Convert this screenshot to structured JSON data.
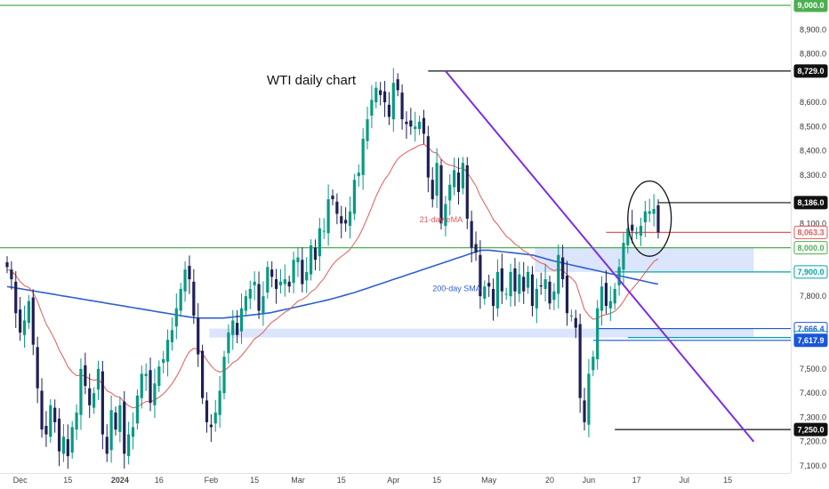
{
  "colors": {
    "up": "#089981",
    "down": "#1f1f57",
    "ema": "#e35a5a",
    "sma": "#2e5fce",
    "trendline": "#7a2ee6",
    "green_level": "#4caf50",
    "teal_level": "#00a5a5",
    "blue_level": "#1a56db",
    "zone": "#dbe5fb",
    "black": "#111111"
  },
  "chart_data": {
    "type": "candlestick",
    "title": "WTI daily chart",
    "ylim": [
      7100,
      9000
    ],
    "y_ticks": [
      "7,100.0",
      "7,200.0",
      "7,300.0",
      "7,400.0",
      "7,500.0",
      "7,600.0",
      "7,700.0",
      "7,800.0",
      "7,900.0",
      "8,000.0",
      "8,100.0",
      "8,200.0",
      "8,300.0",
      "8,400.0",
      "8,500.0",
      "8,600.0",
      "8,700.0",
      "8,800.0",
      "8,900.0",
      "9,000.0"
    ],
    "x_labels": [
      {
        "label": "Dec",
        "i": 3,
        "bold": false
      },
      {
        "label": "15",
        "i": 14,
        "bold": false
      },
      {
        "label": "2024",
        "i": 26,
        "bold": true
      },
      {
        "label": "16",
        "i": 35,
        "bold": false
      },
      {
        "label": "Feb",
        "i": 47,
        "bold": false
      },
      {
        "label": "15",
        "i": 57,
        "bold": false
      },
      {
        "label": "Mar",
        "i": 67,
        "bold": false
      },
      {
        "label": "15",
        "i": 77,
        "bold": false
      },
      {
        "label": "Apr",
        "i": 89,
        "bold": false
      },
      {
        "label": "15",
        "i": 99,
        "bold": false
      },
      {
        "label": "May",
        "i": 111,
        "bold": false
      },
      {
        "label": "20",
        "i": 125,
        "bold": false
      },
      {
        "label": "Jun",
        "i": 134,
        "bold": false
      },
      {
        "label": "17",
        "i": 145,
        "bold": false
      },
      {
        "label": "Jul",
        "i": 156,
        "bold": false
      },
      {
        "label": "15",
        "i": 166,
        "bold": false
      }
    ],
    "closes": [
      7920,
      7870,
      7730,
      7650,
      7700,
      7780,
      7600,
      7420,
      7250,
      7230,
      7350,
      7280,
      7160,
      7220,
      7140,
      7260,
      7320,
      7500,
      7430,
      7350,
      7400,
      7500,
      7230,
      7150,
      7330,
      7250,
      7350,
      7150,
      7230,
      7260,
      7390,
      7480,
      7480,
      7360,
      7440,
      7510,
      7540,
      7620,
      7660,
      7750,
      7830,
      7910,
      7870,
      7720,
      7560,
      7380,
      7280,
      7260,
      7320,
      7410,
      7550,
      7650,
      7700,
      7640,
      7750,
      7800,
      7830,
      7860,
      7740,
      7800,
      7920,
      7880,
      7830,
      7860,
      7870,
      7840,
      7950,
      7960,
      7850,
      7900,
      8010,
      7950,
      8080,
      8070,
      8200,
      8200,
      8140,
      8100,
      8100,
      8150,
      8280,
      8310,
      8450,
      8530,
      8610,
      8660,
      8630,
      8600,
      8540,
      8680,
      8650,
      8530,
      8510,
      8500,
      8500,
      8520,
      8470,
      8290,
      8200,
      8350,
      8100,
      8180,
      8260,
      8320,
      8230,
      8350,
      8120,
      8000,
      7980,
      7800,
      7840,
      7840,
      7760,
      7900,
      7820,
      7810,
      7900,
      7820,
      7890,
      7820,
      7900,
      7760,
      7830,
      7840,
      7870,
      7770,
      7820,
      7970,
      7870,
      7730,
      7720,
      7670,
      7380,
      7280,
      7480,
      7550,
      7750,
      7840,
      7760,
      7780,
      7830,
      7920,
      8020,
      8080,
      8070,
      8060,
      8090,
      8150,
      8150,
      8160,
      8063.3
    ],
    "ema_21": [
      7910,
      7905,
      7885,
      7860,
      7843,
      7836,
      7814,
      7778,
      7730,
      7685,
      7655,
      7620,
      7578,
      7546,
      7509,
      7487,
      7472,
      7475,
      7470,
      7459,
      7453,
      7457,
      7437,
      7410,
      7401,
      7387,
      7383,
      7362,
      7348,
      7339,
      7343,
      7355,
      7366,
      7365,
      7371,
      7383,
      7397,
      7417,
      7439,
      7468,
      7501,
      7541,
      7572,
      7585,
      7582,
      7563,
      7537,
      7512,
      7495,
      7487,
      7493,
      7507,
      7526,
      7536,
      7555,
      7577,
      7600,
      7624,
      7636,
      7651,
      7674,
      7693,
      7705,
      7720,
      7734,
      7744,
      7763,
      7780,
      7787,
      7798,
      7818,
      7830,
      7853,
      7873,
      7903,
      7930,
      7950,
      7964,
      7977,
      7993,
      8019,
      8046,
      8083,
      8123,
      8167,
      8212,
      8250,
      8282,
      8305,
      8339,
      8367,
      8382,
      8394,
      8404,
      8413,
      8423,
      8427,
      8414,
      8395,
      8391,
      8365,
      8348,
      8340,
      8338,
      8327,
      8329,
      8311,
      8283,
      8255,
      8214,
      8182,
      8152,
      8116,
      8096,
      8071,
      8047,
      8034,
      8015,
      8004,
      7987,
      7979,
      7959,
      7947,
      7937,
      7931,
      7914,
      7905,
      7911,
      7907,
      7889,
      7875,
      7856,
      7801,
      7745,
      7721,
      7705,
      7709,
      7721,
      7724,
      7729,
      7738,
      7755,
      7779,
      7807,
      7830,
      7851,
      7873,
      7898,
      7921,
      7943,
      7954
    ],
    "sma_200": [
      7840,
      7837,
      7834,
      7831,
      7828,
      7825,
      7822,
      7819,
      7816,
      7813,
      7810,
      7807,
      7804,
      7801,
      7798,
      7795,
      7792,
      7789,
      7786,
      7783,
      7780,
      7777,
      7774,
      7771,
      7768,
      7765,
      7762,
      7759,
      7756,
      7753,
      7750,
      7747,
      7744,
      7741,
      7738,
      7735,
      7732,
      7729,
      7726,
      7723,
      7720,
      7717,
      7714,
      7712,
      7710,
      7710,
      7710,
      7710,
      7710,
      7710,
      7710,
      7712,
      7714,
      7716,
      7718,
      7720,
      7722,
      7724,
      7726,
      7728,
      7730,
      7733,
      7737,
      7741,
      7745,
      7749,
      7753,
      7757,
      7761,
      7765,
      7769,
      7773,
      7777,
      7781,
      7785,
      7790,
      7795,
      7800,
      7805,
      7810,
      7815,
      7821,
      7827,
      7833,
      7839,
      7845,
      7851,
      7857,
      7863,
      7869,
      7875,
      7881,
      7887,
      7893,
      7899,
      7905,
      7911,
      7917,
      7923,
      7929,
      7935,
      7941,
      7947,
      7953,
      7959,
      7965,
      7971,
      7977,
      7983,
      7989,
      7990,
      7990,
      7988,
      7986,
      7984,
      7982,
      7980,
      7978,
      7976,
      7974,
      7972,
      7970,
      7965,
      7960,
      7955,
      7950,
      7945,
      7941,
      7937,
      7933,
      7929,
      7925,
      7921,
      7917,
      7913,
      7909,
      7905,
      7901,
      7897,
      7893,
      7889,
      7885,
      7881,
      7877,
      7873,
      7869,
      7865,
      7861,
      7857,
      7853,
      7850
    ],
    "levels": [
      {
        "name": "9,000.0",
        "value": 9000,
        "color": "green_level",
        "label_style": "fill"
      },
      {
        "name": "8,729.0",
        "value": 8729,
        "color": "black",
        "label_style": "fill"
      },
      {
        "name": "8,186.0",
        "value": 8186,
        "color": "black",
        "label_style": "fill"
      },
      {
        "name": "8,063.3",
        "value": 8063.3,
        "color": "ema",
        "label_style": "outline"
      },
      {
        "name": "8,000.0",
        "value": 8000,
        "color": "green_level",
        "label_style": "outline"
      },
      {
        "name": "7,900.0",
        "value": 7900,
        "color": "teal_level",
        "label_style": "outline"
      },
      {
        "name": "7,666.4",
        "value": 7666.4,
        "color": "blue_level",
        "label_style": "outline"
      },
      {
        "name": "7,629.6",
        "value": 7629.6,
        "color": "teal_level",
        "label_style": "outline"
      },
      {
        "name": "7,617.9",
        "value": 7617.9,
        "color": "blue_level",
        "label_style": "fill"
      },
      {
        "name": "7,250.0",
        "value": 7250,
        "color": "black",
        "label_style": "fill"
      }
    ],
    "zones": [
      {
        "from_i": 47,
        "to_i": 172,
        "low": 7629.6,
        "high": 7666.4
      },
      {
        "from_i": 122,
        "to_i": 172,
        "low": 7900,
        "high": 8000
      }
    ],
    "trendline": {
      "from_i": 101,
      "from_price": 8729,
      "to_i": 172,
      "to_price": 7200
    },
    "annotations": [
      {
        "text": "21-day eMA",
        "i": 95,
        "price": 8105,
        "color": "ema"
      },
      {
        "text": "200-day SMA",
        "i": 98,
        "price": 7820,
        "color": "sma"
      }
    ],
    "highlight_circle": {
      "center_i": 148,
      "center_price": 8120,
      "radius_x_bars": 5,
      "radius_y_price": 155
    }
  }
}
